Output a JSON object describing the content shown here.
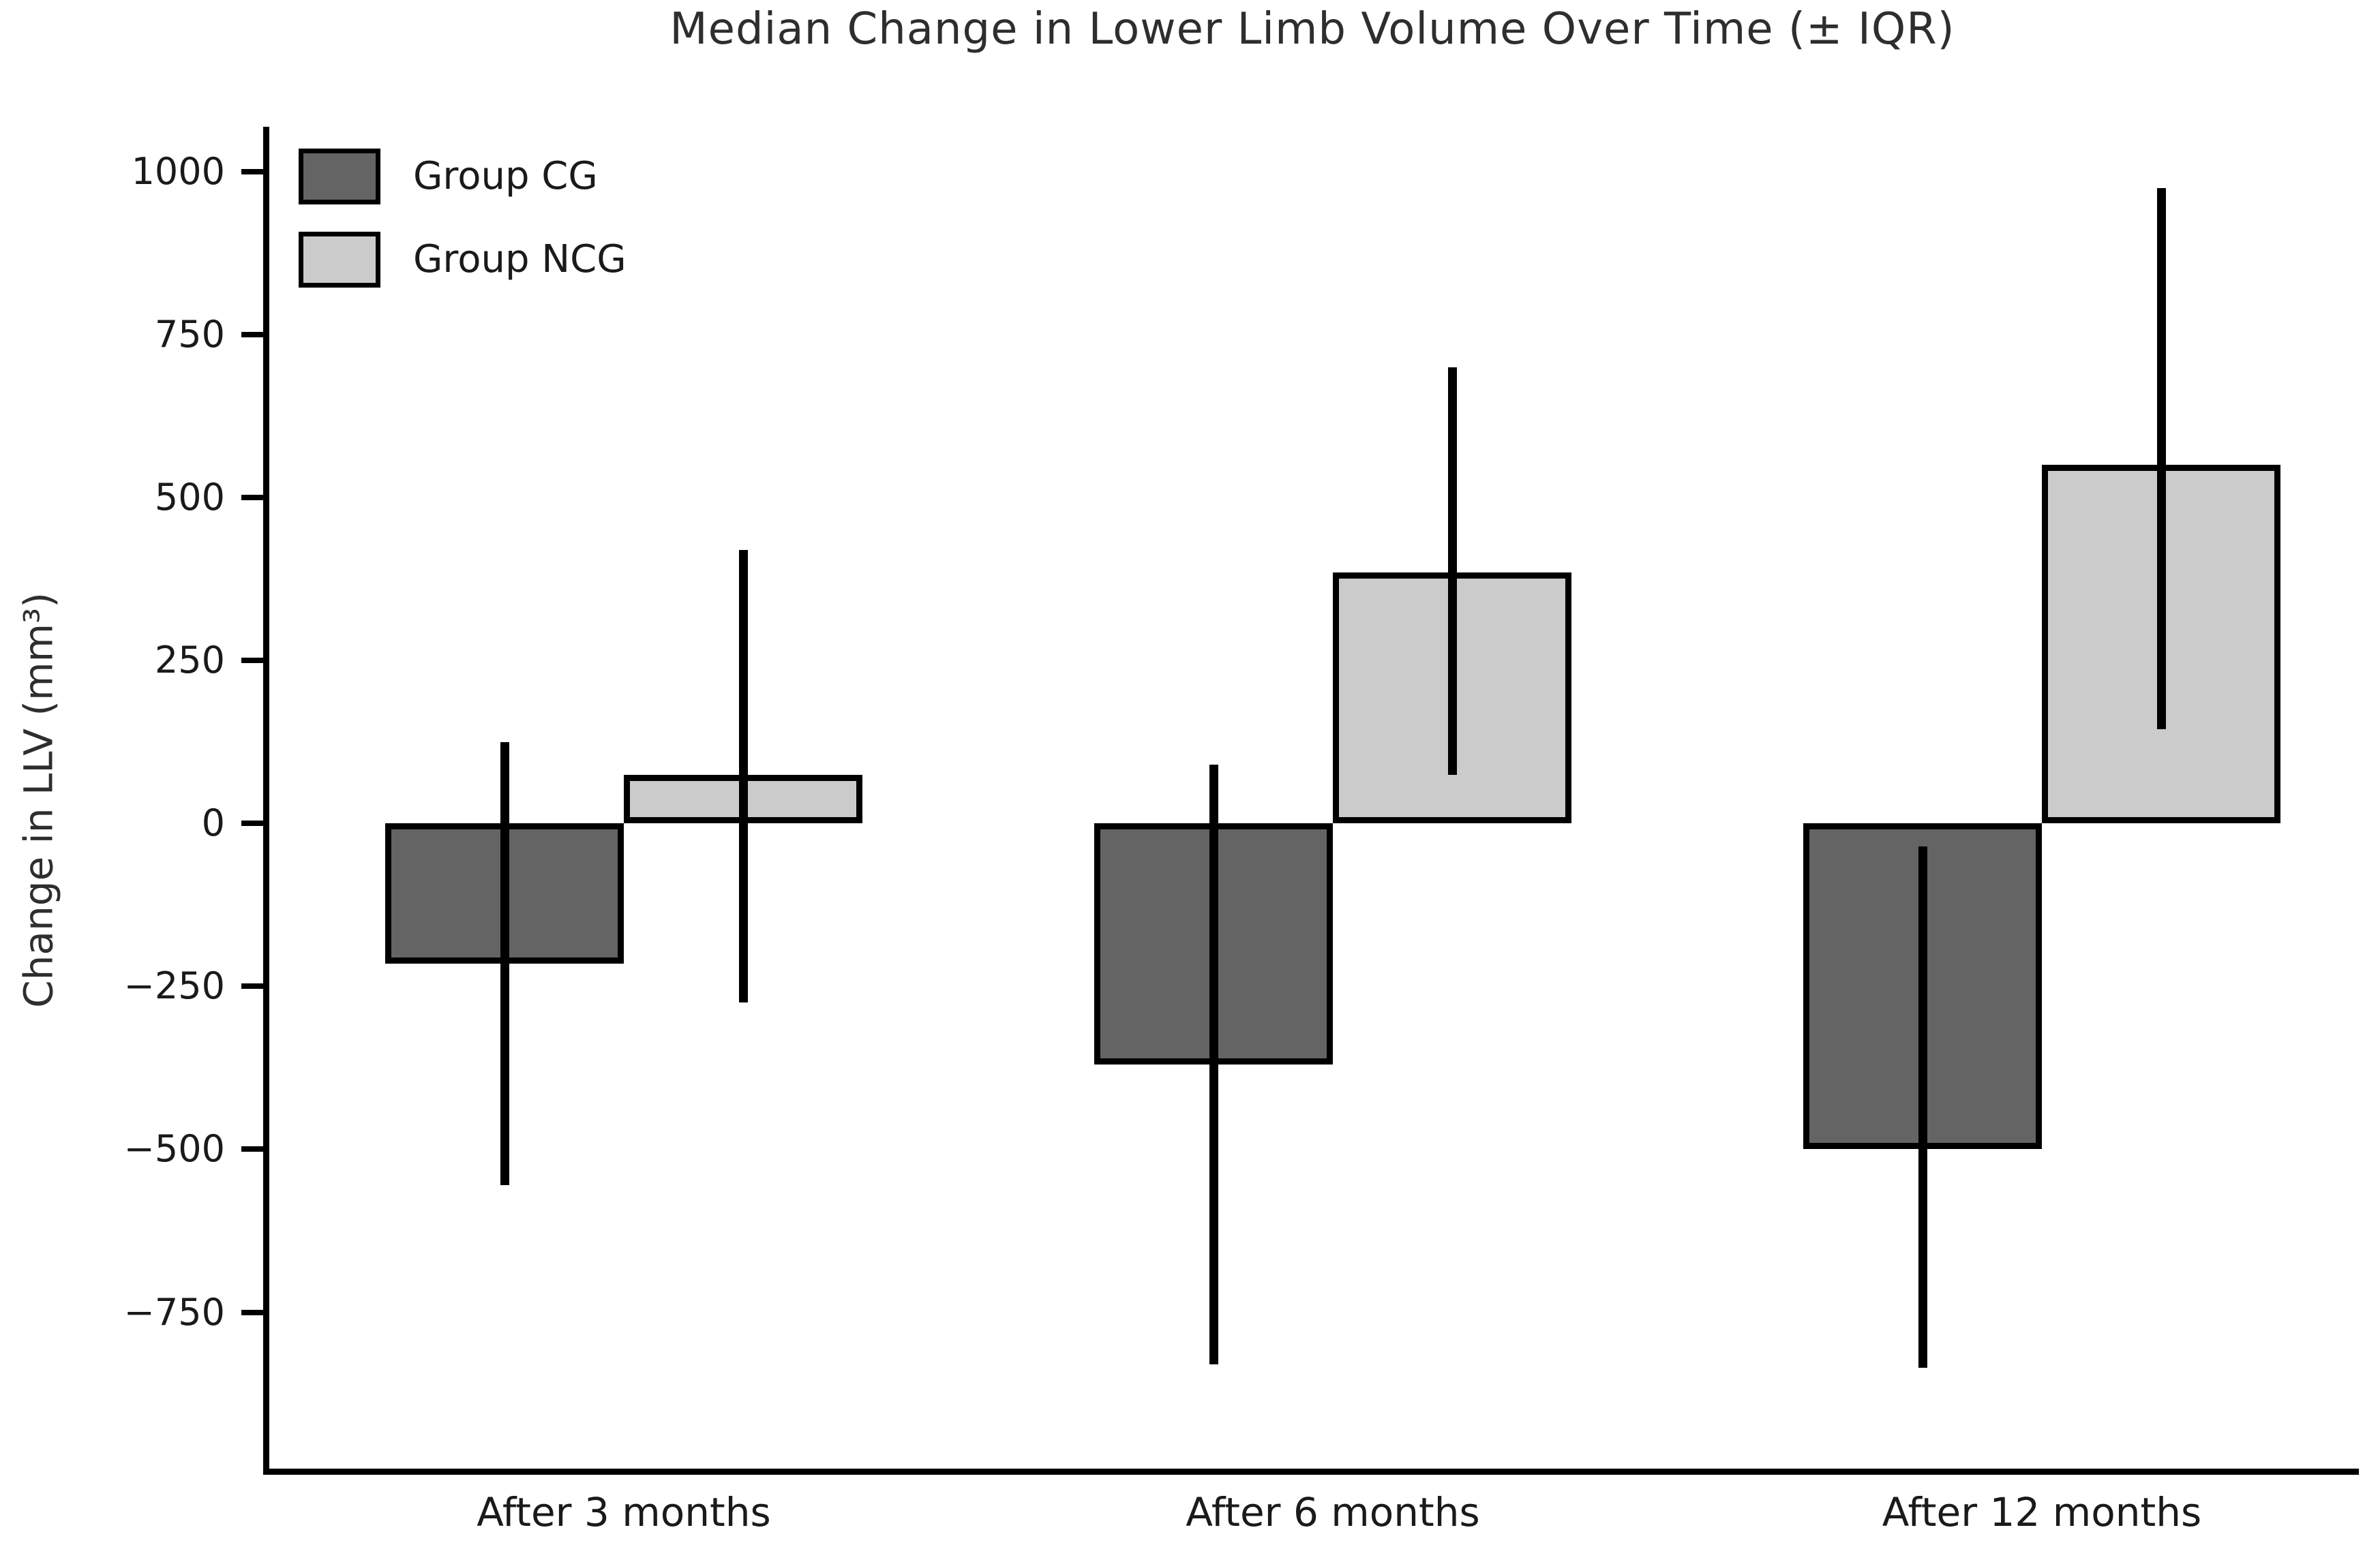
{
  "title": "Median Change in Lower Limb Volume Over Time (± IQR)",
  "ylabel": "Change in LLV (mm³)",
  "legend": {
    "items": [
      {
        "label": "Group CG",
        "color": "#646464"
      },
      {
        "label": "Group NCG",
        "color": "#cbcbcb"
      }
    ]
  },
  "chart_data": {
    "type": "bar",
    "title": "Median Change in Lower Limb Volume Over Time (± IQR)",
    "xlabel": "",
    "ylabel": "Change in LLV (mm³)",
    "categories": [
      "After 3 months",
      "After 6 months",
      "After 12 months"
    ],
    "series": [
      {
        "name": "Group CG",
        "color": "#646464",
        "edge_color": "#000000",
        "medians": [
          -215,
          -370,
          -500
        ],
        "whisker_low": [
          -555,
          -830,
          -835
        ],
        "whisker_high": [
          125,
          90,
          -35
        ]
      },
      {
        "name": "Group NCG",
        "color": "#cbcbcb",
        "edge_color": "#000000",
        "medians": [
          75,
          385,
          550
        ],
        "whisker_low": [
          -275,
          75,
          145
        ],
        "whisker_high": [
          420,
          700,
          975
        ]
      }
    ],
    "error_bars": "IQR",
    "yticks": [
      1000,
      750,
      500,
      250,
      0,
      -250,
      -500,
      -750
    ],
    "ylim": [
      -990,
      1065
    ],
    "grid": false,
    "legend_position": "upper left",
    "spines": [
      "left",
      "bottom"
    ]
  }
}
